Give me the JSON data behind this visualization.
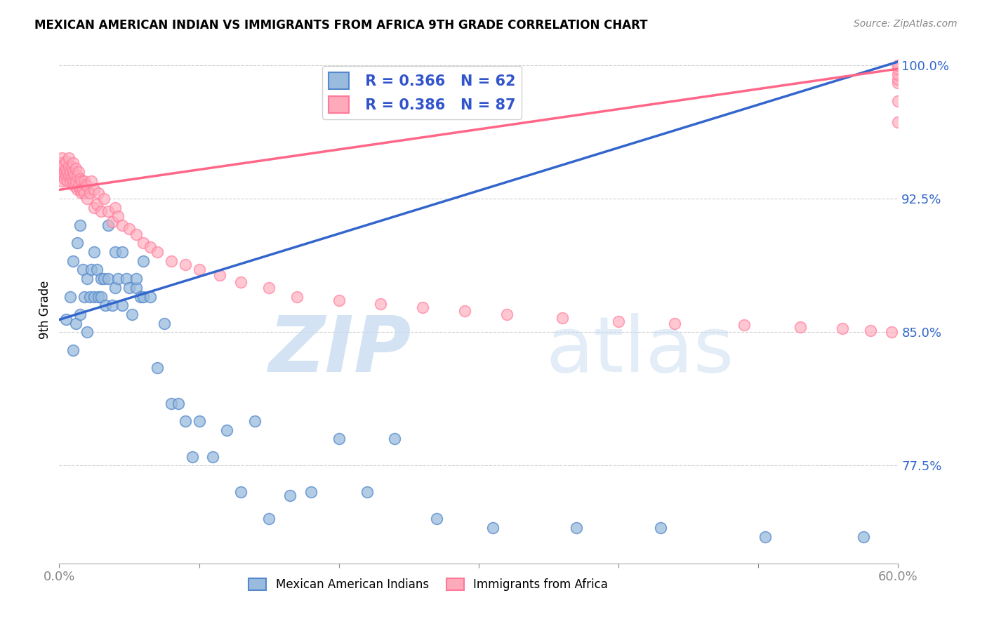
{
  "title": "MEXICAN AMERICAN INDIAN VS IMMIGRANTS FROM AFRICA 9TH GRADE CORRELATION CHART",
  "source": "Source: ZipAtlas.com",
  "ylabel": "9th Grade",
  "xlim": [
    0.0,
    0.6
  ],
  "ylim": [
    0.72,
    1.005
  ],
  "ytick_values": [
    0.775,
    0.85,
    0.925,
    1.0
  ],
  "ytick_labels": [
    "77.5%",
    "85.0%",
    "92.5%",
    "100.0%"
  ],
  "blue_color": "#99BBDD",
  "pink_color": "#FFAABB",
  "blue_edge_color": "#5588CC",
  "pink_edge_color": "#FF7799",
  "blue_line_color": "#3366CC",
  "pink_line_color": "#FF6688",
  "legend_text_color": "#3355CC",
  "R_blue": 0.366,
  "N_blue": 62,
  "R_pink": 0.386,
  "N_pink": 87,
  "blue_trend": [
    0.857,
    1.002
  ],
  "pink_trend": [
    0.93,
    0.998
  ],
  "blue_scatter_x": [
    0.005,
    0.008,
    0.01,
    0.01,
    0.012,
    0.013,
    0.015,
    0.015,
    0.017,
    0.018,
    0.02,
    0.02,
    0.022,
    0.023,
    0.025,
    0.025,
    0.027,
    0.028,
    0.03,
    0.03,
    0.032,
    0.033,
    0.035,
    0.035,
    0.038,
    0.04,
    0.04,
    0.042,
    0.045,
    0.045,
    0.048,
    0.05,
    0.052,
    0.055,
    0.055,
    0.058,
    0.06,
    0.06,
    0.065,
    0.07,
    0.075,
    0.08,
    0.085,
    0.09,
    0.095,
    0.1,
    0.11,
    0.12,
    0.13,
    0.14,
    0.15,
    0.165,
    0.18,
    0.2,
    0.22,
    0.24,
    0.27,
    0.31,
    0.37,
    0.43,
    0.505,
    0.575
  ],
  "blue_scatter_y": [
    0.857,
    0.87,
    0.84,
    0.89,
    0.855,
    0.9,
    0.91,
    0.86,
    0.885,
    0.87,
    0.85,
    0.88,
    0.87,
    0.885,
    0.87,
    0.895,
    0.885,
    0.87,
    0.87,
    0.88,
    0.88,
    0.865,
    0.88,
    0.91,
    0.865,
    0.875,
    0.895,
    0.88,
    0.865,
    0.895,
    0.88,
    0.875,
    0.86,
    0.875,
    0.88,
    0.87,
    0.89,
    0.87,
    0.87,
    0.83,
    0.855,
    0.81,
    0.81,
    0.8,
    0.78,
    0.8,
    0.78,
    0.795,
    0.76,
    0.8,
    0.745,
    0.758,
    0.76,
    0.79,
    0.76,
    0.79,
    0.745,
    0.74,
    0.74,
    0.74,
    0.735,
    0.735
  ],
  "pink_scatter_x": [
    0.001,
    0.001,
    0.002,
    0.002,
    0.002,
    0.003,
    0.003,
    0.004,
    0.004,
    0.005,
    0.005,
    0.005,
    0.006,
    0.006,
    0.007,
    0.007,
    0.007,
    0.008,
    0.008,
    0.009,
    0.009,
    0.01,
    0.01,
    0.01,
    0.011,
    0.011,
    0.012,
    0.012,
    0.013,
    0.013,
    0.014,
    0.014,
    0.015,
    0.015,
    0.016,
    0.016,
    0.017,
    0.018,
    0.018,
    0.019,
    0.02,
    0.02,
    0.022,
    0.023,
    0.025,
    0.025,
    0.027,
    0.028,
    0.03,
    0.032,
    0.035,
    0.038,
    0.04,
    0.042,
    0.045,
    0.05,
    0.055,
    0.06,
    0.065,
    0.07,
    0.08,
    0.09,
    0.1,
    0.115,
    0.13,
    0.15,
    0.17,
    0.2,
    0.23,
    0.26,
    0.29,
    0.32,
    0.36,
    0.4,
    0.44,
    0.49,
    0.53,
    0.56,
    0.58,
    0.595,
    0.6,
    0.6,
    0.6,
    0.6,
    0.6,
    0.6,
    0.6
  ],
  "pink_scatter_y": [
    0.94,
    0.945,
    0.935,
    0.942,
    0.948,
    0.938,
    0.944,
    0.94,
    0.936,
    0.938,
    0.942,
    0.946,
    0.94,
    0.935,
    0.938,
    0.943,
    0.948,
    0.935,
    0.94,
    0.937,
    0.943,
    0.935,
    0.94,
    0.945,
    0.932,
    0.938,
    0.935,
    0.942,
    0.93,
    0.938,
    0.932,
    0.94,
    0.93,
    0.936,
    0.928,
    0.935,
    0.93,
    0.935,
    0.928,
    0.933,
    0.925,
    0.932,
    0.928,
    0.935,
    0.92,
    0.93,
    0.922,
    0.928,
    0.918,
    0.925,
    0.918,
    0.912,
    0.92,
    0.915,
    0.91,
    0.908,
    0.905,
    0.9,
    0.898,
    0.895,
    0.89,
    0.888,
    0.885,
    0.882,
    0.878,
    0.875,
    0.87,
    0.868,
    0.866,
    0.864,
    0.862,
    0.86,
    0.858,
    0.856,
    0.855,
    0.854,
    0.853,
    0.852,
    0.851,
    0.85,
    0.968,
    0.98,
    0.99,
    0.992,
    0.995,
    0.998,
    1.0
  ]
}
